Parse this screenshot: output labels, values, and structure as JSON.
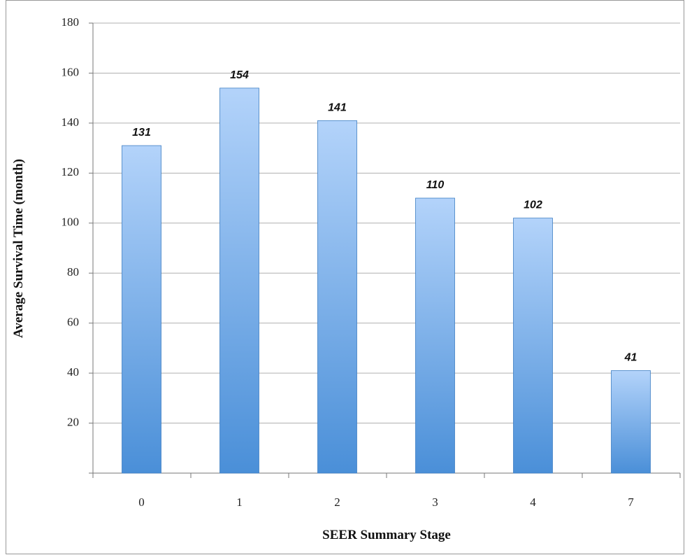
{
  "chart_data": {
    "type": "bar",
    "x_label": "SEER Summary Stage",
    "y_label": "Average Survival Time (month)",
    "categories": [
      "0",
      "1",
      "2",
      "3",
      "4",
      "7"
    ],
    "values": [
      131,
      154,
      141,
      110,
      102,
      41
    ],
    "color": "#4a8fd8",
    "ylim": [
      0,
      180
    ],
    "yticks": [
      20,
      40,
      60,
      80,
      100,
      120,
      140,
      160,
      180
    ],
    "grid": true
  }
}
